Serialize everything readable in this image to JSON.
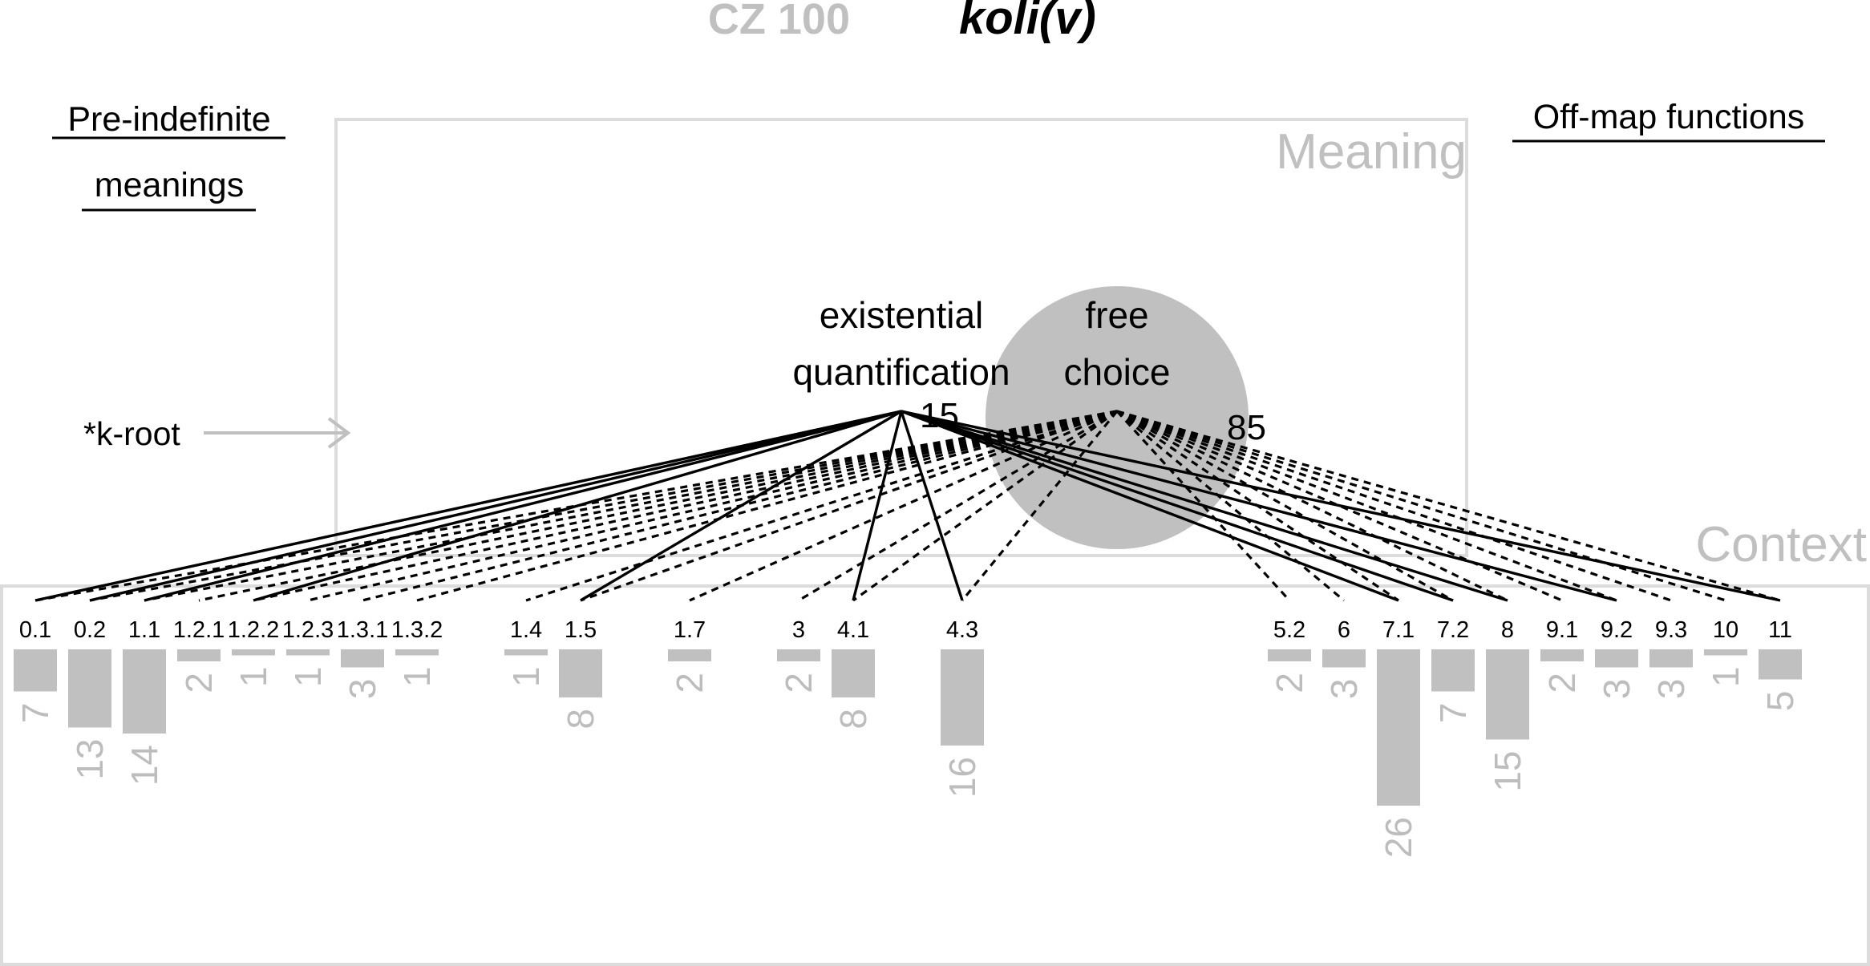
{
  "title": {
    "code": "CZ 100",
    "word": "koli(v)"
  },
  "sections": {
    "pre_indefinite_line1": "Pre-indefinite",
    "pre_indefinite_line2": "meanings",
    "off_map": "Off-map functions"
  },
  "panels": {
    "meaning": "Meaning",
    "context": "Context"
  },
  "root_label": "*k-root",
  "meanings": [
    {
      "id": "existential",
      "line1": "existential",
      "line2": "quantification",
      "percent": "15"
    },
    {
      "id": "free_choice",
      "line1": "free",
      "line2": "choice",
      "percent": "85"
    }
  ],
  "colors": {
    "bar": "#c0c0c0",
    "frame": "#dcdcdc",
    "circle": "#c0c0c0",
    "muted": "#c0c0c0"
  },
  "chart_data": {
    "type": "bar",
    "categories": [
      "0.1",
      "0.2",
      "1.1",
      "1.2.1",
      "1.2.2",
      "1.2.3",
      "1.3.1",
      "1.3.2",
      "1.4",
      "1.5",
      "1.7",
      "3",
      "4.1",
      "4.3",
      "5.2",
      "6",
      "7.1",
      "7.2",
      "8",
      "9.1",
      "9.2",
      "9.3",
      "10",
      "11"
    ],
    "values": [
      7,
      13,
      14,
      2,
      1,
      1,
      3,
      1,
      1,
      8,
      2,
      2,
      8,
      16,
      2,
      3,
      26,
      7,
      15,
      2,
      3,
      3,
      1,
      5
    ],
    "labels": [
      "0.1",
      "0.2",
      "1.1",
      "1.2.1",
      "1.2.2",
      "1.2.3",
      "1.3.1",
      "1.3.2",
      "1.4",
      "1.5",
      "1.7",
      "3",
      "4.1",
      "4.3",
      "5.2",
      "6",
      "7.1",
      "7.2",
      "8",
      "9.1",
      "9.2",
      "9.3",
      "10",
      "11"
    ],
    "count_labels": [
      "7",
      "13",
      "14",
      "2",
      "1",
      "1",
      "3",
      "1",
      "1",
      "8",
      "2",
      "2",
      "8",
      "16",
      "2",
      "3",
      "26",
      "7",
      "15",
      "2",
      "3",
      "3",
      "1",
      "5"
    ],
    "links": {
      "existential": [
        "0.1",
        "0.2",
        "1.1",
        "1.2.2",
        "1.5",
        "4.1",
        "4.3",
        "7.1",
        "7.2",
        "8",
        "9.2",
        "11"
      ],
      "free_choice": [
        "0.1",
        "0.2",
        "1.1",
        "1.2.1",
        "1.2.2",
        "1.2.3",
        "1.3.1",
        "1.3.2",
        "1.4",
        "1.5",
        "1.7",
        "3",
        "4.1",
        "4.3",
        "5.2",
        "6",
        "7.1",
        "7.2",
        "8",
        "9.1",
        "9.2",
        "9.3",
        "10",
        "11"
      ]
    }
  }
}
